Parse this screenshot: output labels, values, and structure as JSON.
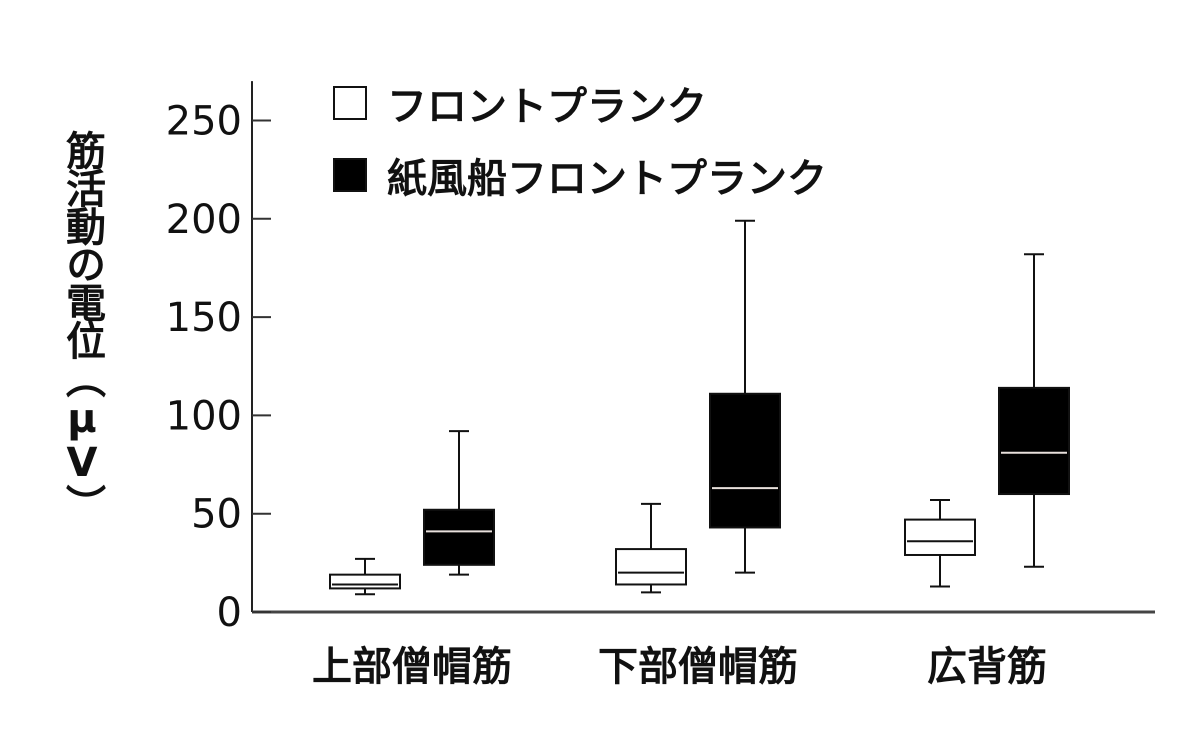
{
  "chart_data": {
    "type": "boxplot",
    "ylabel": "筋活動の電位（μV）",
    "ylim": [
      0,
      270
    ],
    "yticks": [
      0,
      50,
      100,
      150,
      200,
      250
    ],
    "grid": false,
    "legend_position": "top-left",
    "categories": [
      "上部僧帽筋",
      "下部僧帽筋",
      "広背筋"
    ],
    "series": [
      {
        "name": "フロントプランク",
        "color": "#ffffff",
        "boxes": [
          {
            "min": 9,
            "q1": 12,
            "median": 14,
            "q3": 19,
            "max": 27
          },
          {
            "min": 10,
            "q1": 14,
            "median": 20,
            "q3": 32,
            "max": 55
          },
          {
            "min": 13,
            "q1": 29,
            "median": 36,
            "q3": 47,
            "max": 57
          }
        ]
      },
      {
        "name": "紙風船フロントプランク",
        "color": "#000000",
        "boxes": [
          {
            "min": 19,
            "q1": 24,
            "median": 41,
            "q3": 52,
            "max": 92
          },
          {
            "min": 20,
            "q1": 43,
            "median": 63,
            "q3": 111,
            "max": 199
          },
          {
            "min": 23,
            "q1": 60,
            "median": 81,
            "q3": 114,
            "max": 182
          }
        ]
      }
    ]
  }
}
